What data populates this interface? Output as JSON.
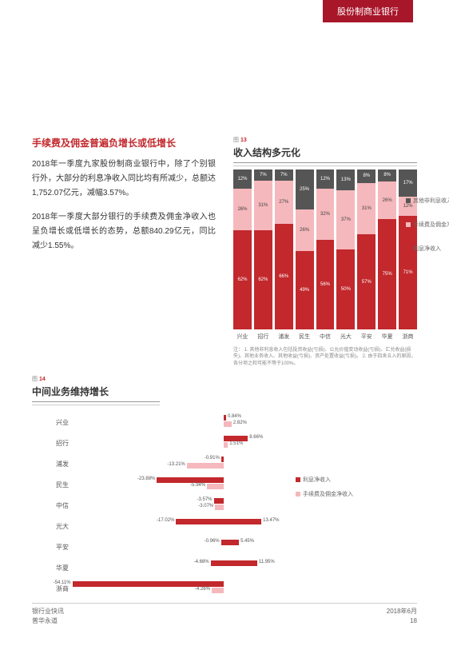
{
  "header": {
    "tag": "股份制商业银行"
  },
  "leftCol": {
    "title": "手续费及佣金普遍负增长或低增长",
    "para1": "2018年一季度九家股份制商业银行中，除了个别银行外，大部分的利息净收入同比均有所减少，总额达1,752.07亿元，减幅3.57%。",
    "para2": "2018年一季度大部分银行的手续费及佣金净收入也呈负增长或低增长的态势，总额840.29亿元，同比减少1.55%。"
  },
  "fig13": {
    "label": "图",
    "num": "13",
    "title": "收入结构多元化",
    "banks": [
      "兴业",
      "招行",
      "浦发",
      "民生",
      "中信",
      "光大",
      "平安",
      "华夏",
      "浙商"
    ],
    "seg1": [
      12,
      7,
      7,
      25,
      12,
      13,
      8,
      8,
      17
    ],
    "seg2": [
      26,
      31,
      27,
      26,
      32,
      37,
      31,
      26,
      12
    ],
    "seg3": [
      62,
      62,
      66,
      49,
      56,
      50,
      57,
      75,
      71
    ],
    "colors": {
      "s1": "#555555",
      "s2": "#f5b8bc",
      "s3": "#c2282c"
    },
    "legend": [
      "其他非利息收入",
      "手续费及佣金净收入",
      "利息净收入"
    ],
    "notes": "注：\n1. 其他非利息收入包括投资收益(亏损)、公允价值变动收益(亏损)、汇兑收益(损失)、其他业务收入、其他收益(亏损)、资产处置收益(亏损)。\n2. 由于四舍五入的原因，各分项之和可能不等于100%。"
  },
  "fig14": {
    "label": "图",
    "num": "14",
    "title": "中间业务维持增长",
    "banks": [
      "兴业",
      "招行",
      "浦发",
      "民生",
      "中信",
      "光大",
      "平安",
      "华夏",
      "浙商"
    ],
    "rows": [
      {
        "neg": null,
        "pos": 0.84,
        "pos2": 2.82
      },
      {
        "neg": null,
        "pos": 8.66,
        "pos2": 1.51
      },
      {
        "neg": -0.91,
        "neg2": -13.21,
        "pos": null
      },
      {
        "neg": -23.88,
        "neg2": -5.94,
        "pos": null
      },
      {
        "neg": -3.57,
        "neg2": -3.07,
        "pos": null
      },
      {
        "neg": -17.02,
        "pos": 13.47
      },
      {
        "neg": -0.96,
        "pos": 5.45
      },
      {
        "neg": -4.68,
        "pos": 11.95
      },
      {
        "neg": -54.11,
        "neg2": -4.26,
        "pos": null
      }
    ],
    "legend": [
      "利息净收入",
      "手续费及佣金净收入"
    ],
    "colors": {
      "neg": "#c2282c",
      "pos": "#f5b8bc"
    }
  },
  "footer": {
    "left1": "银行业快讯",
    "left2": "普华永道",
    "right1": "2018年6月",
    "right2": "18"
  }
}
